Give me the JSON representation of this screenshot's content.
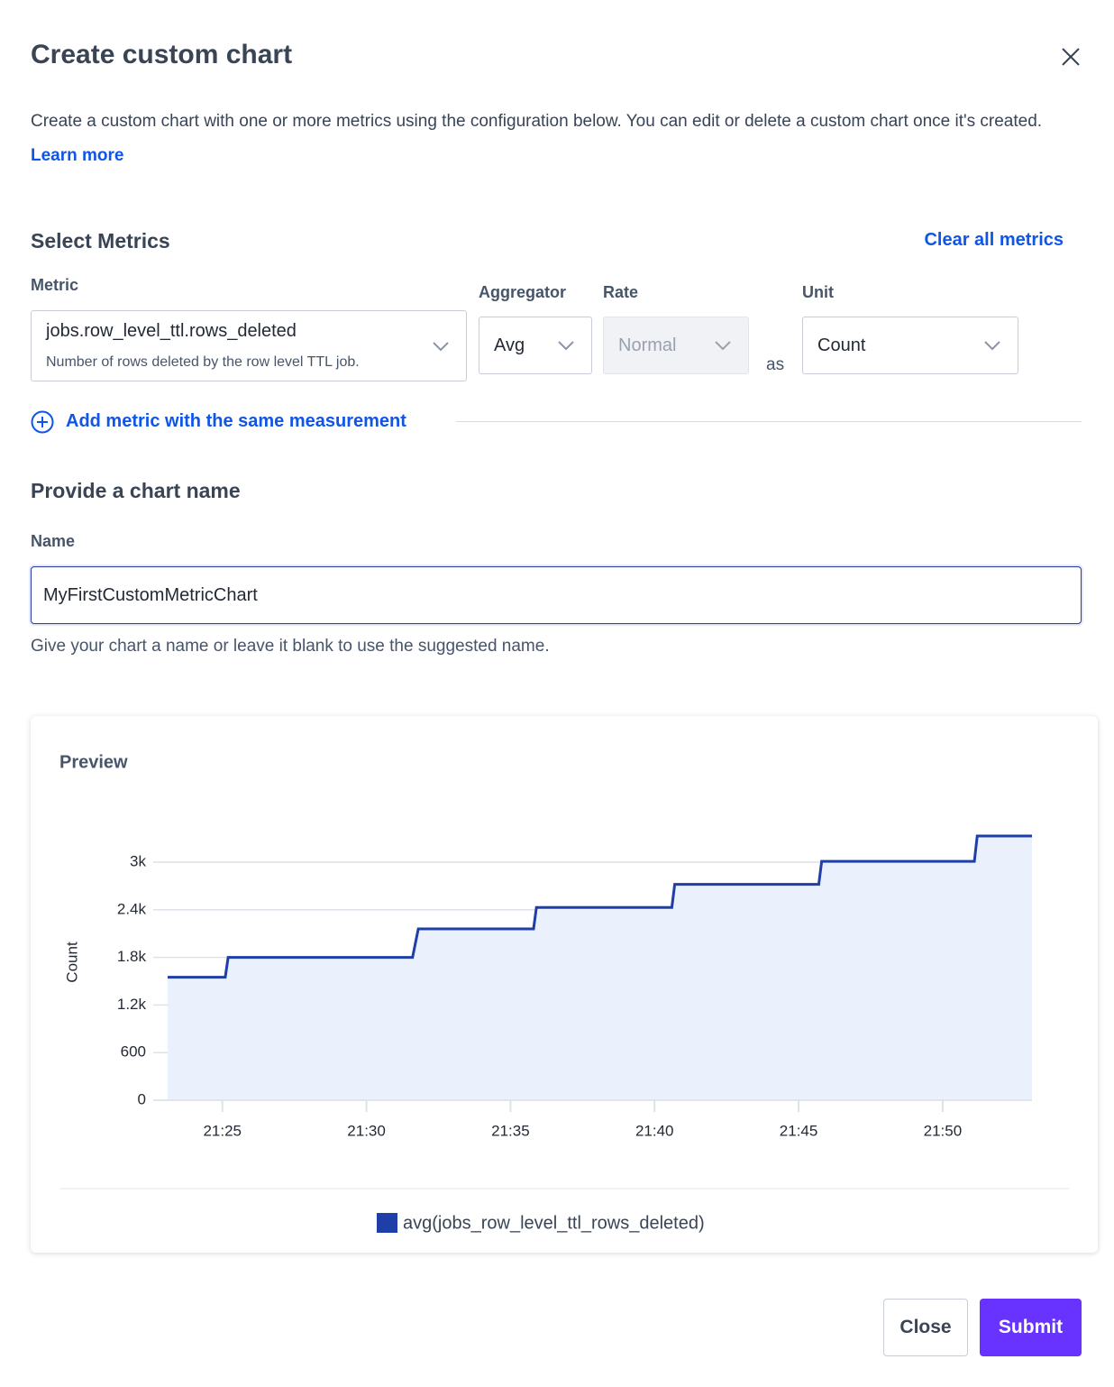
{
  "dialog": {
    "title": "Create custom chart",
    "description": "Create a custom chart with one or more metrics using the configuration below. You can edit or delete a custom chart once it's created.",
    "learn_more": "Learn more"
  },
  "metrics": {
    "heading": "Select Metrics",
    "clear_all": "Clear all metrics",
    "metric": {
      "label": "Metric",
      "value": "jobs.row_level_ttl.rows_deleted",
      "description": "Number of rows deleted by the row level TTL job."
    },
    "aggregator": {
      "label": "Aggregator",
      "value": "Avg"
    },
    "rate": {
      "label": "Rate",
      "value": "Normal"
    },
    "connector": "as",
    "unit": {
      "label": "Unit",
      "value": "Count"
    },
    "add_metric": "Add metric with the same measurement"
  },
  "chart_name": {
    "heading": "Provide a chart name",
    "label": "Name",
    "value": "MyFirstCustomMetricChart",
    "help": "Give your chart a name or leave it blank to use the suggested name."
  },
  "chart_data": {
    "type": "line",
    "title": "Preview",
    "ylabel": "Count",
    "x": [
      1283.1,
      1285.1,
      1285.2,
      1291.6,
      1291.8,
      1295.8,
      1295.9,
      1300.6,
      1300.7,
      1305.7,
      1305.8,
      1311.1,
      1311.2,
      1313.1
    ],
    "xlim": [
      1283.1,
      1313.1
    ],
    "xticks": [
      {
        "value": 1285,
        "label": "21:25"
      },
      {
        "value": 1290,
        "label": "21:30"
      },
      {
        "value": 1295,
        "label": "21:35"
      },
      {
        "value": 1300,
        "label": "21:40"
      },
      {
        "value": 1305,
        "label": "21:45"
      },
      {
        "value": 1310,
        "label": "21:50"
      }
    ],
    "ylim": [
      0,
      3330
    ],
    "yticks": [
      0,
      600,
      {
        "value": 1200,
        "label": "1.2k"
      },
      {
        "value": 1800,
        "label": "1.8k"
      },
      {
        "value": 2400,
        "label": "2.4k"
      },
      {
        "value": 3000,
        "label": "3k"
      }
    ],
    "grid": true,
    "area": true,
    "series": [
      {
        "name": "avg(jobs_row_level_ttl_rows_deleted)",
        "color": "#1e3ea8",
        "fill_color": "#ebf0fd",
        "values": [
          1550,
          1550,
          1800,
          1800,
          2160,
          2160,
          2430,
          2430,
          2720,
          2720,
          3010,
          3010,
          3330,
          3330
        ]
      }
    ]
  },
  "buttons": {
    "close": "Close",
    "submit": "Submit"
  }
}
